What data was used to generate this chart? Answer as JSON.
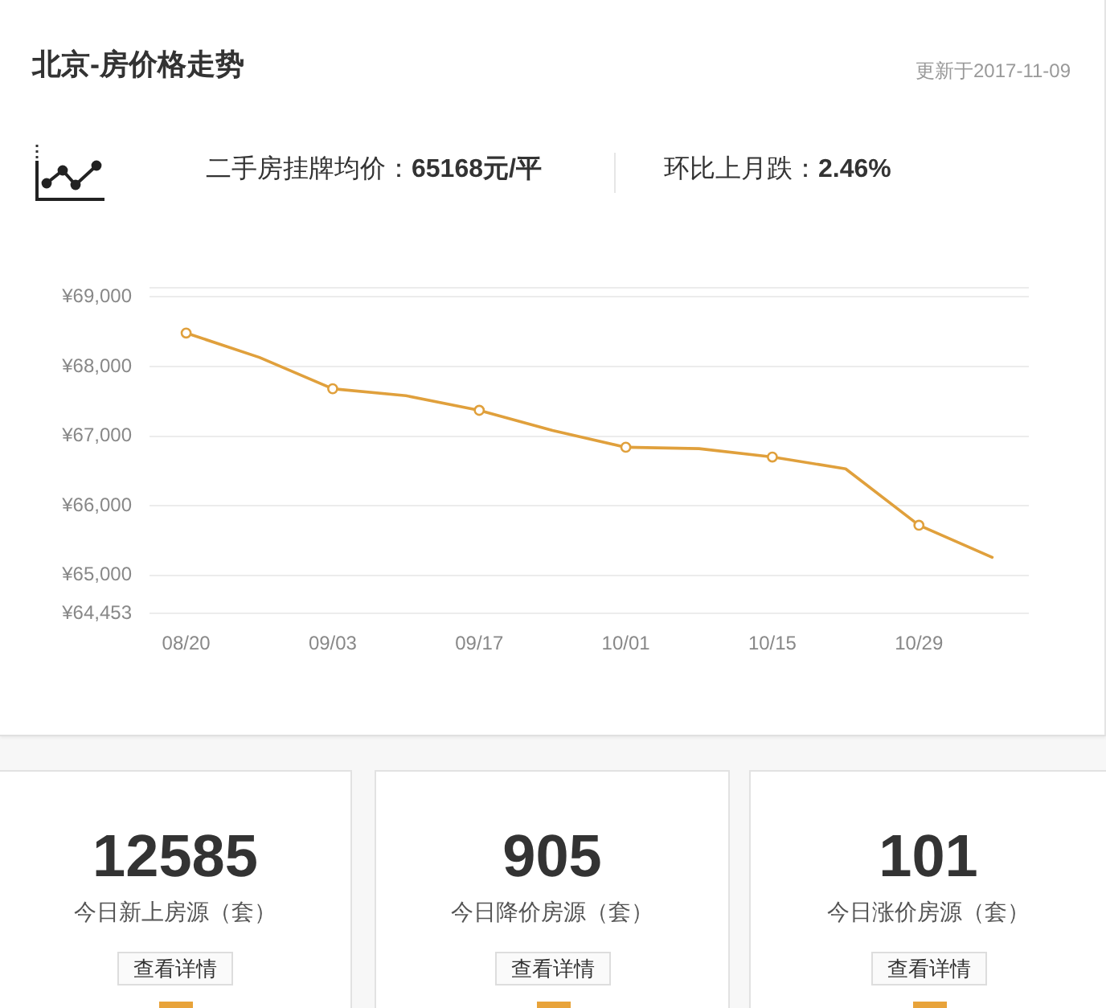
{
  "chart_data": [
    {
      "type": "line",
      "title": "北京-房价格走势",
      "annotations": [
        "更新于2017-11-09",
        "二手房挂牌均价：",
        "65168元/平",
        "环比上月跌：",
        "2.46%"
      ],
      "categories": [
        "08/20",
        null,
        "09/03",
        null,
        "09/17",
        null,
        "10/01",
        null,
        "10/15",
        null,
        "10/29",
        null
      ],
      "series": [
        {
          "color": "#e0a03c",
          "values": [
            68480,
            68130,
            67680,
            67580,
            67370,
            67080,
            66840,
            66820,
            66700,
            66530,
            65720,
            65260
          ]
        }
      ],
      "ylim": [
        64453,
        69130
      ],
      "yticks": [
        {
          "value": 64453,
          "label": "¥64,453"
        },
        {
          "value": 65000,
          "label": "¥65,000"
        },
        {
          "value": 66000,
          "label": "¥66,000"
        },
        {
          "value": 67000,
          "label": "¥67,000"
        },
        {
          "value": 68000,
          "label": "¥68,000"
        },
        {
          "value": 69000,
          "label": "¥69,000"
        },
        {
          "value": 69130,
          "label": null
        }
      ],
      "grid": "y",
      "marker": "circle",
      "line_style": "solid"
    },
    {
      "type": "other",
      "title": "12585",
      "subtitle": "今日新上房源（套）",
      "annotations": [
        "查看详情"
      ]
    },
    {
      "type": "other",
      "title": "905",
      "subtitle": "今日降价房源（套）",
      "annotations": [
        "查看详情"
      ]
    },
    {
      "type": "other",
      "title": "101",
      "subtitle": "今日涨价房源（套）",
      "annotations": [
        "查看详情"
      ]
    }
  ]
}
